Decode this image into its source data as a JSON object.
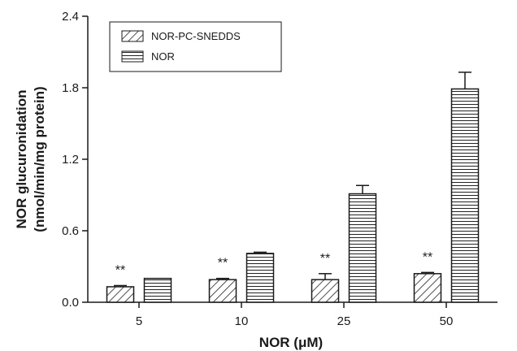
{
  "chart_data": {
    "type": "bar",
    "title": "",
    "xlabel": "NOR (μM)",
    "ylabel_line1": "NOR glucuronidation",
    "ylabel_line2": "(nmol/min/mg protein)",
    "categories": [
      "5",
      "10",
      "25",
      "50"
    ],
    "ylim": [
      0,
      2.4
    ],
    "yticks": [
      "0.0",
      "0.6",
      "1.2",
      "1.8",
      "2.4"
    ],
    "series": [
      {
        "name": "NOR-PC-SNEDDS",
        "pattern": "diagonal-hatch",
        "values": [
          0.13,
          0.19,
          0.19,
          0.24
        ],
        "errors": [
          0.01,
          0.01,
          0.05,
          0.01
        ]
      },
      {
        "name": "NOR",
        "pattern": "horizontal-stripes",
        "values": [
          0.2,
          0.41,
          0.91,
          1.79
        ],
        "errors": [
          0.0,
          0.01,
          0.07,
          0.14
        ]
      }
    ],
    "annotations": [
      "**",
      "**",
      "**",
      "**"
    ],
    "legend_position": "top-left",
    "grid": false
  }
}
